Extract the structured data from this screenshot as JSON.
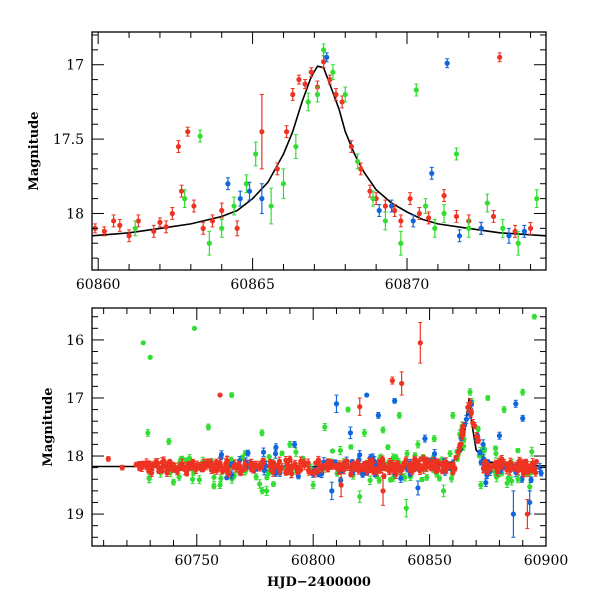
{
  "chart_data": [
    {
      "type": "scatter",
      "title": "",
      "xlabel": "",
      "ylabel": "Magnitude",
      "xlim": [
        60859.8,
        60874.5
      ],
      "ylim": [
        18.38,
        16.78
      ],
      "y_inverted": true,
      "xticks": [
        60860,
        60865,
        60870
      ],
      "yticks": [
        17,
        17.5,
        18
      ],
      "colors": {
        "red": "#ee3322",
        "green": "#33dd33",
        "blue": "#1166dd",
        "model": "#000000"
      },
      "model_curve": {
        "x": [
          60859.8,
          60861,
          60862,
          60863,
          60864,
          60864.5,
          60865,
          60865.5,
          60866,
          60866.3,
          60866.6,
          60866.9,
          60867.1,
          60867.3,
          60867.5,
          60867.8,
          60868,
          60868.3,
          60868.6,
          60869,
          60869.5,
          60870,
          60870.5,
          60871,
          60872,
          60873,
          60874.5
        ],
        "y": [
          18.15,
          18.13,
          18.1,
          18.07,
          18.02,
          17.98,
          17.9,
          17.79,
          17.6,
          17.45,
          17.25,
          17.08,
          17.01,
          17.02,
          17.13,
          17.3,
          17.45,
          17.6,
          17.72,
          17.84,
          17.93,
          17.99,
          18.04,
          18.07,
          18.1,
          18.13,
          18.15
        ]
      },
      "series": [
        {
          "color": "red",
          "points": [
            [
              60859.9,
              18.1,
              0.03
            ],
            [
              60860.2,
              18.12,
              0.03
            ],
            [
              60860.5,
              18.05,
              0.04
            ],
            [
              60860.7,
              18.08,
              0.04
            ],
            [
              60861.0,
              18.15,
              0.04
            ],
            [
              60861.3,
              18.05,
              0.04
            ],
            [
              60861.8,
              18.12,
              0.04
            ],
            [
              60862.0,
              18.06,
              0.03
            ],
            [
              60862.2,
              18.09,
              0.04
            ],
            [
              60862.4,
              18.0,
              0.04
            ],
            [
              60862.6,
              17.55,
              0.04
            ],
            [
              60862.7,
              17.85,
              0.04
            ],
            [
              60862.9,
              17.45,
              0.03
            ],
            [
              60863.1,
              17.95,
              0.04
            ],
            [
              60863.4,
              18.1,
              0.04
            ],
            [
              60863.7,
              18.05,
              0.04
            ],
            [
              60864.0,
              17.98,
              0.05
            ],
            [
              60864.5,
              18.1,
              0.05
            ],
            [
              60865.3,
              17.45,
              0.25
            ],
            [
              60865.8,
              17.7,
              0.04
            ],
            [
              60866.1,
              17.45,
              0.04
            ],
            [
              60866.3,
              17.2,
              0.04
            ],
            [
              60866.5,
              17.1,
              0.03
            ],
            [
              60866.7,
              17.13,
              0.03
            ],
            [
              60866.9,
              17.05,
              0.03
            ],
            [
              60867.1,
              17.15,
              0.04
            ],
            [
              60867.3,
              16.98,
              0.04
            ],
            [
              60867.5,
              17.1,
              0.03
            ],
            [
              60867.7,
              17.2,
              0.04
            ],
            [
              60867.9,
              17.25,
              0.04
            ],
            [
              60868.2,
              17.55,
              0.04
            ],
            [
              60868.5,
              17.7,
              0.04
            ],
            [
              60868.8,
              17.85,
              0.04
            ],
            [
              60869.0,
              17.9,
              0.04
            ],
            [
              60869.3,
              17.95,
              0.04
            ],
            [
              60869.6,
              17.98,
              0.04
            ],
            [
              60869.8,
              18.05,
              0.04
            ],
            [
              60870.1,
              17.9,
              0.04
            ],
            [
              60870.4,
              18.0,
              0.04
            ],
            [
              60870.7,
              18.03,
              0.04
            ],
            [
              60871.2,
              17.88,
              0.04
            ],
            [
              60871.6,
              18.02,
              0.04
            ],
            [
              60872.0,
              18.05,
              0.04
            ],
            [
              60872.4,
              18.1,
              0.04
            ],
            [
              60872.8,
              18.02,
              0.04
            ],
            [
              60873.0,
              16.95,
              0.03
            ],
            [
              60873.5,
              18.12,
              0.04
            ],
            [
              60874.0,
              18.1,
              0.04
            ]
          ]
        },
        {
          "color": "green",
          "points": [
            [
              60861.2,
              18.1,
              0.05
            ],
            [
              60862.8,
              17.9,
              0.06
            ],
            [
              60863.3,
              17.48,
              0.04
            ],
            [
              60863.6,
              18.2,
              0.08
            ],
            [
              60864.0,
              18.1,
              0.06
            ],
            [
              60864.4,
              17.95,
              0.06
            ],
            [
              60864.8,
              17.8,
              0.06
            ],
            [
              60865.1,
              17.6,
              0.08
            ],
            [
              60865.6,
              17.95,
              0.12
            ],
            [
              60866.0,
              17.8,
              0.1
            ],
            [
              60866.4,
              17.55,
              0.08
            ],
            [
              60866.8,
              17.25,
              0.06
            ],
            [
              60867.1,
              17.2,
              0.05
            ],
            [
              60867.3,
              16.9,
              0.04
            ],
            [
              60867.6,
              17.05,
              0.05
            ],
            [
              60868.0,
              17.2,
              0.05
            ],
            [
              60868.4,
              17.65,
              0.05
            ],
            [
              60868.9,
              17.9,
              0.05
            ],
            [
              60869.3,
              18.05,
              0.06
            ],
            [
              60869.8,
              18.2,
              0.08
            ],
            [
              60870.3,
              17.17,
              0.04
            ],
            [
              60870.6,
              17.95,
              0.05
            ],
            [
              60870.9,
              18.1,
              0.06
            ],
            [
              60871.2,
              18.0,
              0.06
            ],
            [
              60871.6,
              17.6,
              0.04
            ],
            [
              60872.0,
              18.1,
              0.06
            ],
            [
              60872.6,
              17.93,
              0.06
            ],
            [
              60873.1,
              18.1,
              0.06
            ],
            [
              60873.6,
              18.2,
              0.08
            ],
            [
              60874.2,
              17.9,
              0.06
            ]
          ]
        },
        {
          "color": "blue",
          "points": [
            [
              60864.2,
              17.8,
              0.04
            ],
            [
              60864.6,
              17.9,
              0.05
            ],
            [
              60864.9,
              17.85,
              0.06
            ],
            [
              60865.3,
              17.9,
              0.1
            ],
            [
              60867.4,
              16.95,
              0.03
            ],
            [
              60869.1,
              17.98,
              0.04
            ],
            [
              60869.5,
              17.95,
              0.04
            ],
            [
              60870.2,
              18.05,
              0.04
            ],
            [
              60870.8,
              17.73,
              0.04
            ],
            [
              60871.3,
              16.99,
              0.03
            ],
            [
              60871.7,
              18.15,
              0.04
            ],
            [
              60872.4,
              18.1,
              0.04
            ],
            [
              60873.3,
              18.15,
              0.05
            ],
            [
              60873.8,
              18.12,
              0.04
            ]
          ]
        }
      ]
    },
    {
      "type": "scatter",
      "title": "",
      "xlabel": "HJD−2400000",
      "ylabel": "Magnitude",
      "xlim": [
        60705,
        60900
      ],
      "ylim": [
        19.55,
        15.45
      ],
      "y_inverted": true,
      "xticks": [
        60750,
        60800,
        60850,
        60900
      ],
      "yticks": [
        16,
        17,
        18,
        19
      ],
      "colors": {
        "red": "#ee3322",
        "green": "#33dd33",
        "blue": "#1166dd",
        "model": "#000000"
      },
      "model_curve": {
        "x": [
          60705,
          60800,
          60850,
          60860,
          60864,
          60866,
          60867,
          60868,
          60870,
          60875,
          60885,
          60900
        ],
        "y": [
          18.18,
          18.18,
          18.17,
          18.1,
          17.9,
          17.3,
          17.0,
          17.4,
          17.9,
          18.1,
          18.15,
          18.17
        ]
      },
      "series": [
        {
          "color": "green",
          "points": [
            [
              60727,
              16.05,
              0.03
            ],
            [
              60730,
              16.3,
              0.03
            ],
            [
              60729,
              17.6,
              0.06
            ],
            [
              60749,
              15.8,
              0.03
            ],
            [
              60765,
              16.95,
              0.04
            ],
            [
              60738,
              17.75,
              0.05
            ],
            [
              60755,
              17.5,
              0.05
            ],
            [
              60778,
              17.6,
              0.05
            ],
            [
              60790,
              17.8,
              0.05
            ],
            [
              60805,
              17.5,
              0.06
            ],
            [
              60815,
              17.2,
              0.04
            ],
            [
              60822,
              17.6,
              0.06
            ],
            [
              60830,
              17.55,
              0.05
            ],
            [
              60837,
              17.3,
              0.05
            ],
            [
              60845,
              17.8,
              0.06
            ],
            [
              60852,
              17.7,
              0.05
            ],
            [
              60860,
              17.3,
              0.05
            ],
            [
              60875,
              17.0,
              0.04
            ],
            [
              60882,
              17.2,
              0.05
            ],
            [
              60890,
              16.9,
              0.05
            ],
            [
              60895,
              15.6,
              0.04
            ],
            [
              60740,
              18.45,
              0.05
            ],
            [
              60760,
              18.5,
              0.06
            ],
            [
              60780,
              18.6,
              0.08
            ],
            [
              60800,
              18.5,
              0.06
            ],
            [
              60820,
              18.7,
              0.1
            ],
            [
              60840,
              18.9,
              0.15
            ],
            [
              60856,
              18.6,
              0.1
            ],
            [
              60872,
              18.5,
              0.06
            ],
            [
              60888,
              18.4,
              0.06
            ]
          ]
        },
        {
          "color": "blue",
          "points": [
            [
              60772,
              17.95,
              0.05
            ],
            [
              60784,
              17.85,
              0.06
            ],
            [
              60792,
              17.8,
              0.05
            ],
            [
              60810,
              17.1,
              0.15
            ],
            [
              60816,
              17.6,
              0.1
            ],
            [
              60823,
              16.95,
              0.03
            ],
            [
              60828,
              17.3,
              0.05
            ],
            [
              60835,
              17.05,
              0.04
            ],
            [
              60848,
              17.7,
              0.06
            ],
            [
              60873,
              17.8,
              0.08
            ],
            [
              60880,
              17.65,
              0.06
            ],
            [
              60887,
              17.1,
              0.06
            ],
            [
              60890,
              17.35,
              0.05
            ],
            [
              60808,
              18.6,
              0.15
            ],
            [
              60845,
              18.55,
              0.12
            ],
            [
              60886,
              19.0,
              0.4
            ],
            [
              60893,
              18.8,
              0.2
            ]
          ]
        },
        {
          "color": "red",
          "points": [
            [
              60712,
              18.05,
              0.04
            ],
            [
              60718,
              18.2,
              0.04
            ],
            [
              60724,
              18.15,
              0.04
            ],
            [
              60760,
              16.95,
              0.03
            ],
            [
              60820,
              17.15,
              0.15
            ],
            [
              60834,
              16.7,
              0.06
            ],
            [
              60838,
              16.75,
              0.2
            ],
            [
              60846,
              16.05,
              0.35
            ],
            [
              60812,
              18.5,
              0.2
            ],
            [
              60830,
              18.6,
              0.25
            ],
            [
              60892,
              19.0,
              0.25
            ]
          ]
        }
      ],
      "dense_bands": [
        {
          "color": "green",
          "x": [
            60728,
            60898
          ],
          "center": 18.2,
          "spread": 0.45,
          "count": 170
        },
        {
          "color": "blue",
          "x": [
            60760,
            60898
          ],
          "center": 18.2,
          "spread": 0.3,
          "count": 110
        },
        {
          "color": "red",
          "x": [
            60725,
            60898
          ],
          "center": 18.18,
          "spread": 0.16,
          "count": 380
        }
      ]
    }
  ]
}
